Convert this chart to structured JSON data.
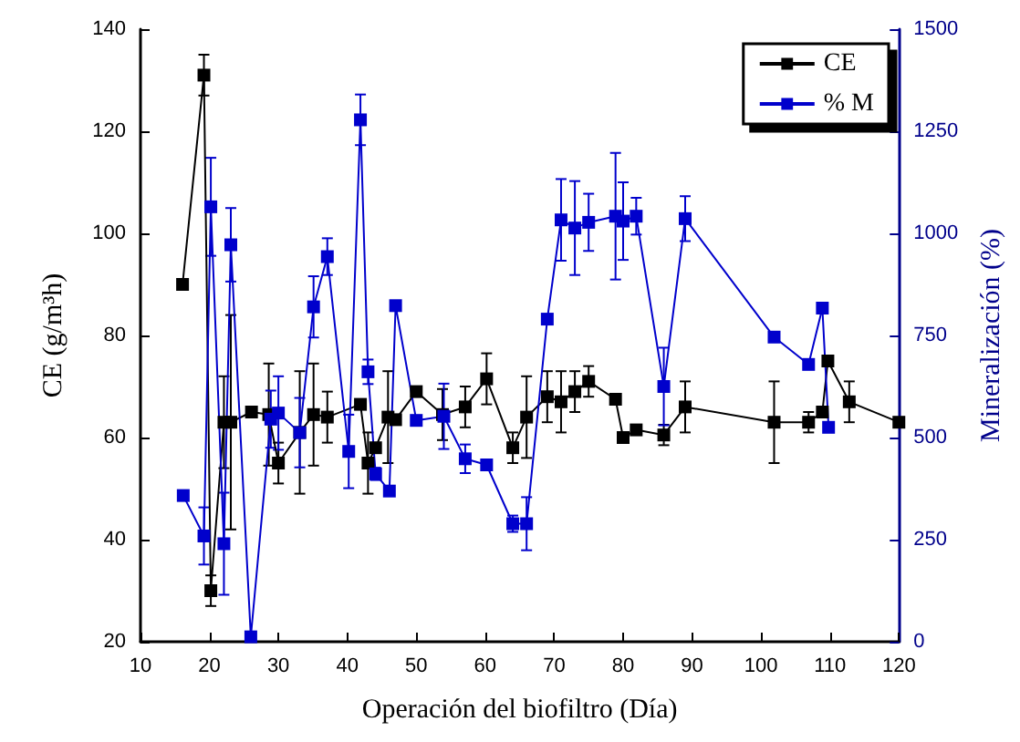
{
  "chart_data": {
    "type": "line",
    "xlabel": "Operación del biofiltro (Día)",
    "ylabel": "CE (g/m³h)",
    "y2label": "Mineralización (%)",
    "xlim": [
      10,
      120
    ],
    "xticks": [
      10,
      20,
      30,
      40,
      50,
      60,
      70,
      80,
      90,
      100,
      110,
      120
    ],
    "ylim": [
      20,
      140
    ],
    "yticks": [
      20,
      40,
      60,
      80,
      100,
      120,
      140
    ],
    "y2lim": [
      0,
      1500
    ],
    "y2ticks": [
      0,
      250,
      500,
      750,
      1000,
      1250,
      1500
    ],
    "grid": false,
    "legend": "top right",
    "marker": "square",
    "line_style": "solid",
    "series": [
      {
        "name": "CE",
        "color": "#000000",
        "x": [
          16.1,
          19.2,
          20.2,
          22.1,
          23.1,
          26.1,
          28.6,
          30.0,
          33.1,
          35.1,
          37.1,
          41.9,
          43.0,
          44.1,
          45.9,
          47.0,
          50.0,
          53.8,
          57.1,
          60.2,
          64.0,
          66.0,
          69.0,
          71.0,
          73.0,
          75.0,
          78.9,
          80.0,
          81.9,
          85.9,
          89.0,
          101.9,
          106.9,
          108.9,
          109.7,
          112.8,
          120
        ],
        "values": [
          90,
          131,
          30,
          63,
          63,
          65,
          64.5,
          55,
          61,
          64.5,
          64,
          66.5,
          55,
          58,
          64,
          63.5,
          69,
          64.5,
          66,
          71.5,
          58,
          64,
          68,
          67,
          69,
          71,
          67.5,
          60,
          61.5,
          60.5,
          66,
          63,
          63,
          65,
          75,
          67,
          63
        ],
        "errors": [
          1,
          4,
          3,
          9,
          21,
          1,
          10,
          4,
          12,
          10,
          5,
          null,
          6,
          null,
          9,
          null,
          null,
          5,
          4,
          5,
          3,
          8,
          5,
          6,
          4,
          3,
          null,
          null,
          null,
          2,
          5,
          8,
          2,
          null,
          null,
          4,
          null
        ]
      },
      {
        "name": "% M",
        "color": "#0000cc",
        "axis": "y2",
        "x": [
          16.2,
          19.2,
          20.2,
          22.1,
          23.1,
          26.0,
          28.9,
          30.0,
          33.1,
          35.1,
          37.1,
          40.2,
          41.9,
          43.0,
          44.1,
          46.1,
          47.0,
          50.0,
          54.0,
          57.1,
          60.2,
          64.0,
          66.0,
          69.0,
          71.0,
          73.0,
          75.0,
          78.9,
          80.0,
          81.9,
          85.9,
          89.0,
          101.9,
          106.9,
          108.9,
          109.8
        ],
        "values": [
          358,
          259,
          1065,
          240,
          972,
          12,
          545,
          560,
          512,
          820,
          943,
          466,
          1278,
          661,
          411,
          369,
          823,
          542,
          552,
          448,
          433,
          289,
          289,
          790,
          1033,
          1013,
          1027,
          1042,
          1030,
          1042,
          625,
          1036,
          746,
          679,
          817,
          525
        ],
        "errors": [
          null,
          70,
          120,
          125,
          90,
          null,
          70,
          90,
          85,
          75,
          45,
          90,
          62,
          30,
          15,
          10,
          null,
          null,
          80,
          35,
          null,
          20,
          65,
          null,
          100,
          115,
          70,
          155,
          95,
          45,
          95,
          55,
          null,
          null,
          null,
          null
        ]
      }
    ]
  }
}
